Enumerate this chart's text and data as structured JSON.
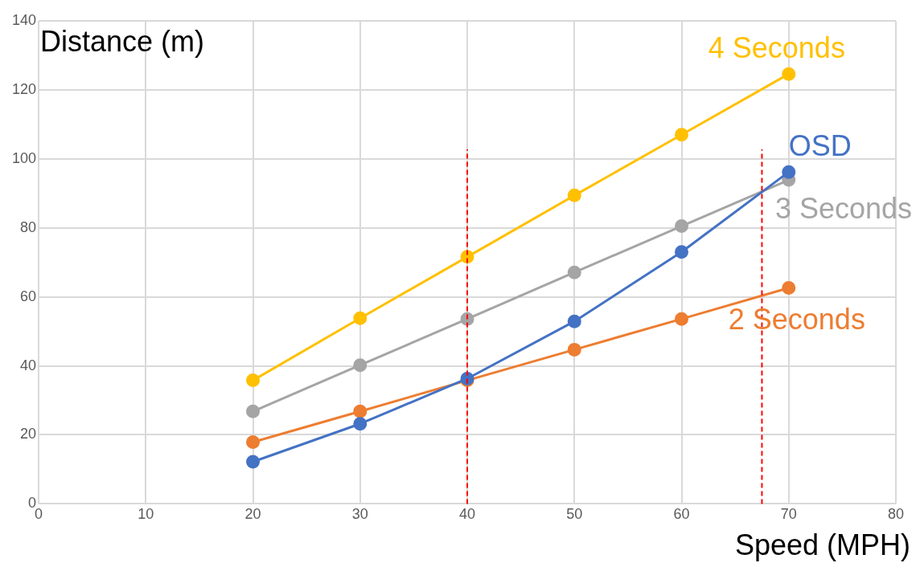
{
  "chart_data": {
    "type": "line",
    "xlabel": "Speed (MPH)",
    "ylabel": "Distance (m)",
    "x": [
      20,
      30,
      40,
      50,
      60,
      70
    ],
    "series": [
      {
        "name": "OSD",
        "color": "#4472c4",
        "values": [
          12.2,
          23.2,
          36.3,
          52.9,
          73,
          96.2
        ]
      },
      {
        "name": "2 Seconds",
        "color": "#ed7d31",
        "values": [
          17.9,
          26.8,
          35.8,
          44.7,
          53.6,
          62.6
        ]
      },
      {
        "name": "3 Seconds",
        "color": "#a5a5a5",
        "values": [
          26.8,
          40.2,
          53.6,
          67.1,
          80.5,
          93.9
        ]
      },
      {
        "name": "4 Seconds",
        "color": "#ffc000",
        "values": [
          35.8,
          53.8,
          71.6,
          89.4,
          107,
          124.6
        ]
      }
    ],
    "xlim": [
      0,
      80
    ],
    "xticks": [
      0,
      10,
      20,
      30,
      40,
      50,
      60,
      70,
      80
    ],
    "ylim": [
      0,
      140
    ],
    "yticks": [
      0,
      20,
      40,
      60,
      80,
      100,
      120,
      140
    ],
    "ref_lines": [
      {
        "axis": "x",
        "value": 40,
        "color": "#ff0000",
        "line_style": "dashed"
      },
      {
        "axis": "x",
        "value": 67.5,
        "color": "#ff0000",
        "line_style": "dashed"
      }
    ],
    "grid": true,
    "legend": false,
    "marker": "circle",
    "line_style": "solid"
  }
}
